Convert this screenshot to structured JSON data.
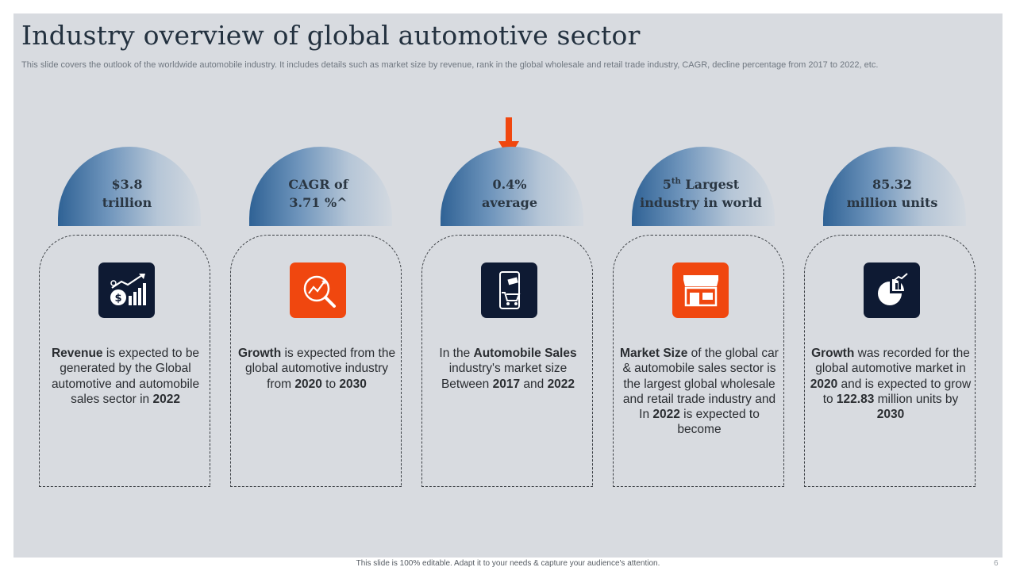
{
  "slide": {
    "title": "Industry overview of global automotive sector",
    "subtitle": "This slide covers the outlook of the worldwide automobile industry. It includes details such as market size by revenue, rank in the global wholesale and retail trade industry, CAGR,  decline percentage from 2017 to 2022, etc."
  },
  "columns": [
    {
      "stat_line1": "$3.8",
      "stat_line2": "trillion",
      "icon": "revenue-growth-icon",
      "desc": [
        {
          "t": "Revenue",
          "b": true
        },
        {
          "t": " is expected to be generated by the Global automotive and automobile sales sector in ",
          "b": false
        },
        {
          "t": "2022",
          "b": true
        }
      ]
    },
    {
      "stat_line1": "CAGR of",
      "stat_line2": "3.71 %^",
      "icon": "growth-analysis-icon",
      "desc": [
        {
          "t": "Growth",
          "b": true
        },
        {
          "t": " is expected from the global automotive industry from ",
          "b": false
        },
        {
          "t": "2020",
          "b": true
        },
        {
          "t": " to ",
          "b": false
        },
        {
          "t": "2030",
          "b": true
        }
      ]
    },
    {
      "stat_line1": "0.4%",
      "stat_line2": "average",
      "icon": "mobile-shopping-cart-icon",
      "desc": [
        {
          "t": "In the ",
          "b": false
        },
        {
          "t": "Automobile Sales",
          "b": true
        },
        {
          "t": " industry's market size Between ",
          "b": false
        },
        {
          "t": "2017",
          "b": true
        },
        {
          "t": " and ",
          "b": false
        },
        {
          "t": "2022",
          "b": true
        }
      ]
    },
    {
      "stat_line1_num": "5",
      "stat_line1_sup": "th",
      "stat_line1_rest": " Largest",
      "stat_line2": "industry in world",
      "icon": "storefront-icon",
      "desc": [
        {
          "t": "Market Size",
          "b": true
        },
        {
          "t": " of the global car & automobile sales sector is the largest global wholesale and retail trade industry and In ",
          "b": false
        },
        {
          "t": "2022",
          "b": true
        },
        {
          "t": " is expected to become",
          "b": false
        }
      ]
    },
    {
      "stat_line1": "85.32",
      "stat_line2": "million units",
      "icon": "pie-bar-chart-icon",
      "desc": [
        {
          "t": "Growth",
          "b": true
        },
        {
          "t": " was recorded for the global automotive market in ",
          "b": false
        },
        {
          "t": "2020",
          "b": true
        },
        {
          "t": " and is expected to grow to ",
          "b": false
        },
        {
          "t": "122.83",
          "b": true
        },
        {
          "t": " million units  by ",
          "b": false
        },
        {
          "t": "2030",
          "b": true
        }
      ]
    }
  ],
  "footer": {
    "note": "This slide is 100% editable. Adapt it to your needs & capture your audience's attention.",
    "page": "6"
  },
  "colors": {
    "accent_orange": "#f0470f",
    "icon_dark": "#0e1a33",
    "dome_blue": "#2f6295"
  }
}
